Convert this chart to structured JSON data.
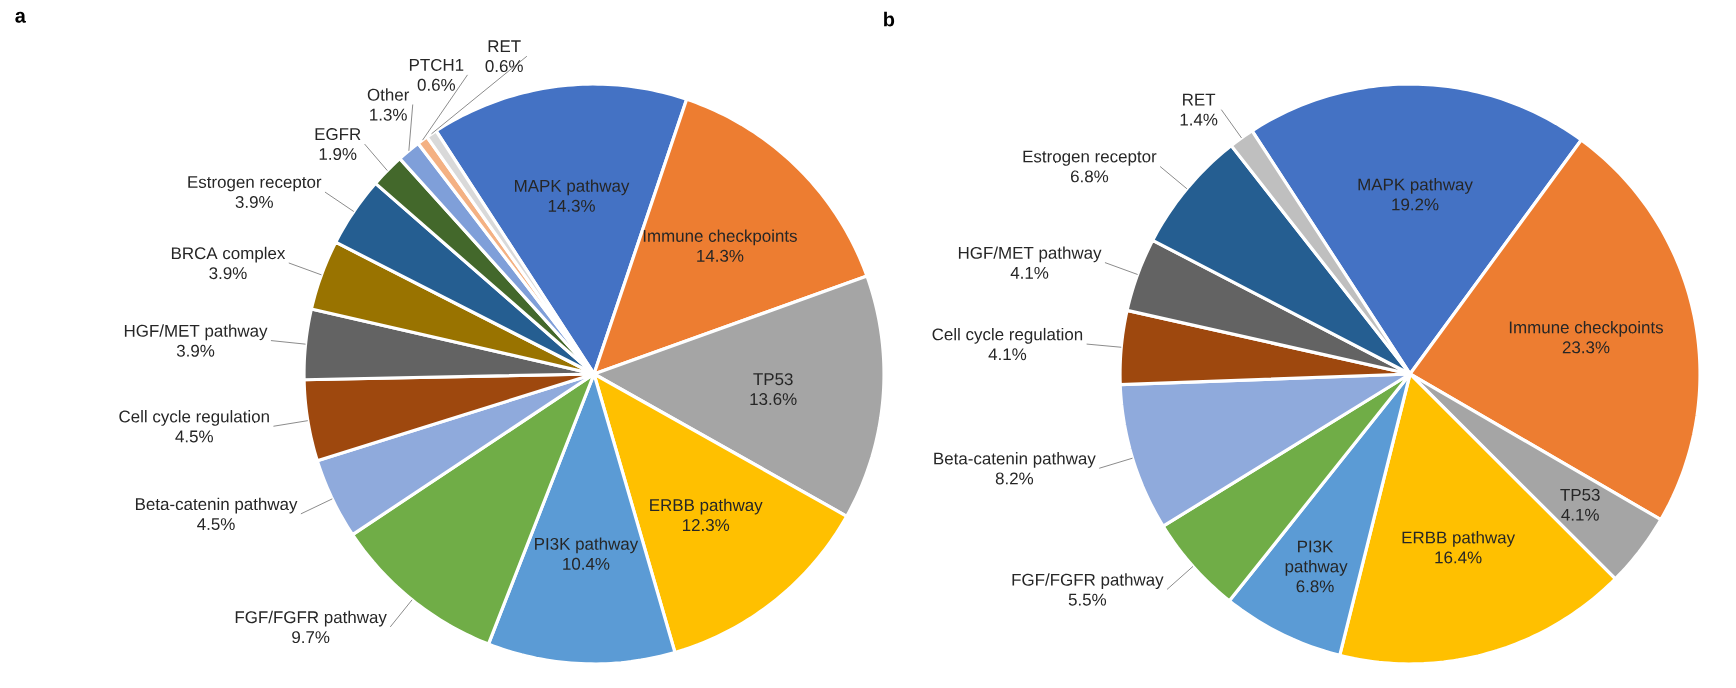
{
  "chart_data": [
    {
      "type": "pie",
      "title": "a",
      "categories": [
        "MAPK pathway",
        "Immune checkpoints",
        "TP53",
        "ERBB pathway",
        "PI3K pathway",
        "FGF/FGFR pathway",
        "Beta-catenin pathway",
        "Cell cycle regulation",
        "HGF/MET pathway",
        "BRCA complex",
        "Estrogen receptor",
        "EGFR",
        "Other",
        "PTCH1",
        "RET"
      ],
      "values": [
        14.3,
        14.3,
        13.6,
        12.3,
        10.4,
        9.7,
        4.5,
        4.5,
        3.9,
        3.9,
        3.9,
        1.9,
        1.3,
        0.6,
        0.6
      ],
      "value_labels": [
        "14.3%",
        "14.3%",
        "13.6%",
        "12.3%",
        "10.4%",
        "9.7%",
        "4.5%",
        "4.5%",
        "3.9%",
        "3.9%",
        "3.9%",
        "1.9%",
        "1.3%",
        "0.6%",
        "0.6%"
      ],
      "colors": [
        "#4472c4",
        "#ed7d31",
        "#a5a5a5",
        "#ffc000",
        "#5b9bd5",
        "#70ad47",
        "#8faadc",
        "#9e480e",
        "#636363",
        "#997300",
        "#255e91",
        "#43682b",
        "#7f9fd9",
        "#f4b183",
        "#d9d9d9"
      ]
    },
    {
      "type": "pie",
      "title": "b",
      "categories": [
        "MAPK pathway",
        "Immune checkpoints",
        "TP53",
        "ERBB pathway",
        "PI3K pathway",
        "FGF/FGFR pathway",
        "Beta-catenin pathway",
        "Cell cycle regulation",
        "HGF/MET pathway",
        "Estrogen receptor",
        "RET"
      ],
      "values": [
        19.2,
        23.3,
        4.1,
        16.4,
        6.8,
        5.5,
        8.2,
        4.1,
        4.1,
        6.8,
        1.4
      ],
      "value_labels": [
        "19.2%",
        "23.3%",
        "4.1%",
        "16.4%",
        "6.8%",
        "5.5%",
        "8.2%",
        "4.1%",
        "4.1%",
        "6.8%",
        "1.4%"
      ],
      "colors": [
        "#4472c4",
        "#ed7d31",
        "#a5a5a5",
        "#ffc000",
        "#5b9bd5",
        "#70ad47",
        "#8faadc",
        "#9e480e",
        "#636363",
        "#255e91",
        "#bfbfbf"
      ]
    }
  ]
}
